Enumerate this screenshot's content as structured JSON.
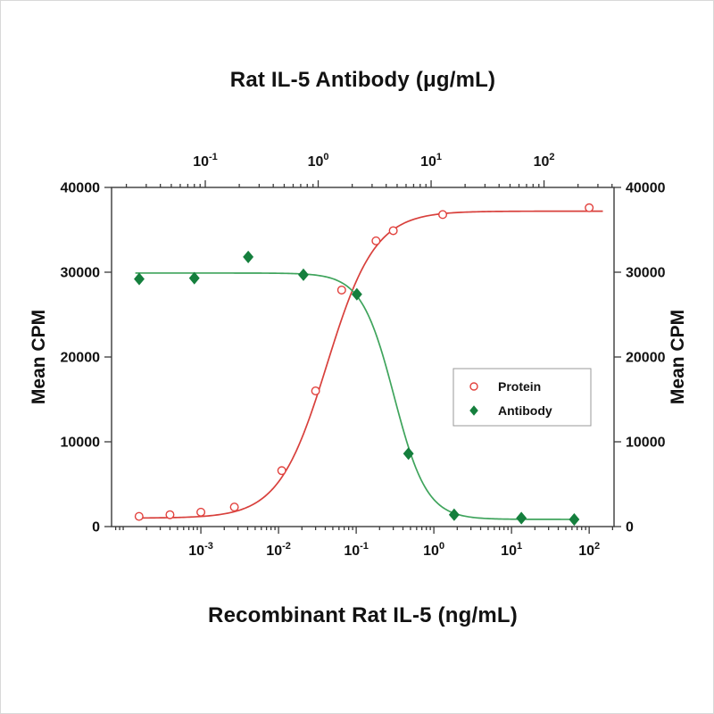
{
  "figure": {
    "top_title": "Rat IL-5 Antibody (μg/mL)",
    "bottom_title": "Recombinant Rat IL-5 (ng/mL)",
    "left_axis_label": "Mean CPM",
    "right_axis_label": "Mean CPM"
  },
  "chart_data": {
    "type": "scatter",
    "title": "Rat IL-5 Antibody (μg/mL)",
    "xlabel_bottom": "Recombinant Rat IL-5 (ng/mL)",
    "xlabel_top": "Rat IL-5 Antibody (μg/mL)",
    "ylabel": "Mean CPM",
    "grid": false,
    "legend_position": "right-center",
    "y_axis": {
      "label": "Mean CPM",
      "min": 0,
      "max": 40000,
      "ticks": [
        0,
        10000,
        20000,
        30000,
        40000
      ]
    },
    "bottom_x_axis": {
      "label": "Recombinant Rat IL-5 (ng/mL)",
      "scale": "log",
      "range_log10": [
        -4.15,
        2.32
      ],
      "tick_values": [
        0.001,
        0.01,
        0.1,
        1,
        10,
        100
      ]
    },
    "top_x_axis": {
      "label": "Rat IL-5 Antibody (μg/mL)",
      "scale": "log",
      "range_log10": [
        -1.83,
        2.62
      ],
      "tick_values": [
        0.1,
        1,
        10,
        100
      ]
    },
    "series": [
      {
        "name": "Protein",
        "axis": "bottom",
        "units": "ng/mL",
        "marker": "open-circle",
        "color": "#E2413D",
        "line_color": "#D8403C",
        "x": [
          0.00016,
          0.0004,
          0.001,
          0.0027,
          0.011,
          0.03,
          0.065,
          0.18,
          0.3,
          1.3,
          100
        ],
        "y": [
          1200,
          1400,
          1700,
          2300,
          6600,
          16000,
          27900,
          33700,
          34900,
          36800,
          37600
        ],
        "fit": {
          "type": "4pl",
          "bottom": 1000,
          "top": 37200,
          "ec50": 0.042,
          "hill": 1.4
        },
        "curve_range": [
          0.00015,
          150
        ]
      },
      {
        "name": "Antibody",
        "axis": "top",
        "units": "μg/mL",
        "marker": "filled-diamond",
        "color": "#157F3D",
        "line_color": "#3FA45C",
        "x": [
          0.026,
          0.08,
          0.24,
          0.74,
          2.2,
          6.3,
          16,
          63,
          185
        ],
        "y": [
          29200,
          29300,
          31800,
          29700,
          27400,
          8600,
          1400,
          1000,
          840
        ],
        "fit": {
          "type": "4pl",
          "bottom": 850,
          "top": 29900,
          "ec50": 4.7,
          "hill": -3
        },
        "curve_range": [
          0.024,
          200
        ]
      }
    ],
    "colors": {
      "frame": "#3A3A3A",
      "text": "#121212",
      "legend_border": "#9A9A9A",
      "background": "#FFFFFF"
    }
  }
}
